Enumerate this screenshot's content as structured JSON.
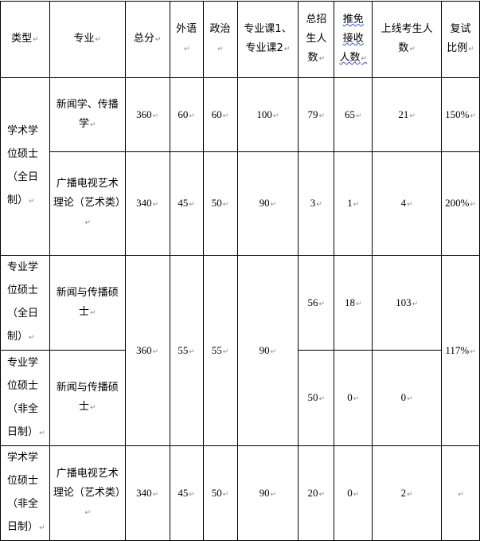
{
  "headers": [
    "类型",
    "专业",
    "总分",
    "外语",
    "政治",
    "专业课1、专业课2",
    "总招生人数",
    "推免接收人数",
    "上线考生人数",
    "复试比例"
  ],
  "rows": [
    {
      "type": "学术学位硕士（全日制）",
      "major": "新闻学、传播学",
      "total": "360",
      "foreign": "60",
      "politics": "60",
      "course": "100",
      "enroll": "79",
      "exempt": "65",
      "qualified": "21",
      "ratio": "150%"
    },
    {
      "major": "广播电视艺术理论（艺术类）",
      "total": "340",
      "foreign": "45",
      "politics": "50",
      "course": "90",
      "enroll": "3",
      "exempt": "1",
      "qualified": "4",
      "ratio": "200%"
    },
    {
      "type": "专业学位硕士（全日制）",
      "major": "新闻与传播硕士",
      "total": "360",
      "foreign": "55",
      "politics": "55",
      "course": "90",
      "enroll": "56",
      "exempt": "18",
      "qualified": "103",
      "ratio": "117%"
    },
    {
      "type": "专业学位硕士（非全日制）",
      "major": "新闻与传播硕士",
      "enroll": "50",
      "exempt": "0",
      "qualified": "0"
    },
    {
      "type": "学术学位硕士（非全日制）",
      "major": "广播电视艺术理论（艺术类）",
      "total": "340",
      "foreign": "45",
      "politics": "50",
      "course": "90",
      "enroll": "20",
      "exempt": "0",
      "qualified": "2",
      "ratio": ""
    }
  ]
}
